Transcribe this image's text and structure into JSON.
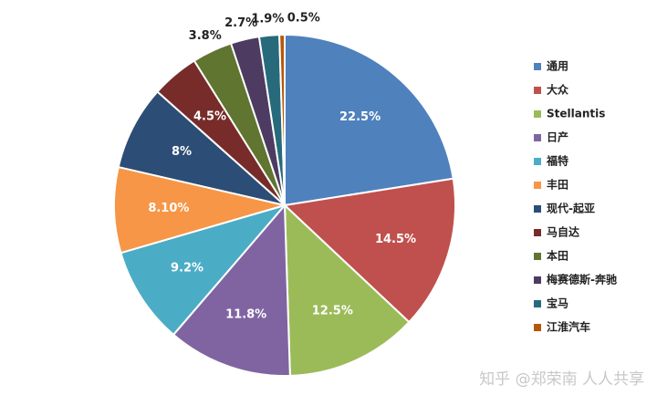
{
  "chart_data": {
    "type": "pie",
    "categories": [
      "通用",
      "大众",
      "Stellantis",
      "日产",
      "福特",
      "丰田",
      "现代-起亚",
      "马自达",
      "本田",
      "梅赛德斯-奔驰",
      "宝马",
      "江淮汽车"
    ],
    "values": [
      22.5,
      14.5,
      12.5,
      11.8,
      9.2,
      8.1,
      8,
      4.5,
      3.8,
      2.7,
      1.9,
      0.5
    ],
    "value_labels": [
      "22.5%",
      "14.5%",
      "12.5%",
      "11.8%",
      "9.2%",
      "8.10%",
      "8%",
      "4.5%",
      "3.8%",
      "2.7%",
      "1.9%",
      "0.5%"
    ],
    "colors": [
      "#4f81bd",
      "#c0504d",
      "#9bbb59",
      "#8064a2",
      "#4bacc6",
      "#f79646",
      "#2c4d75",
      "#772c2a",
      "#5f7530",
      "#4d3b62",
      "#276a7c",
      "#b65708"
    ],
    "legend": "right",
    "watermark": "知乎 @郑荣南 人人共享"
  }
}
